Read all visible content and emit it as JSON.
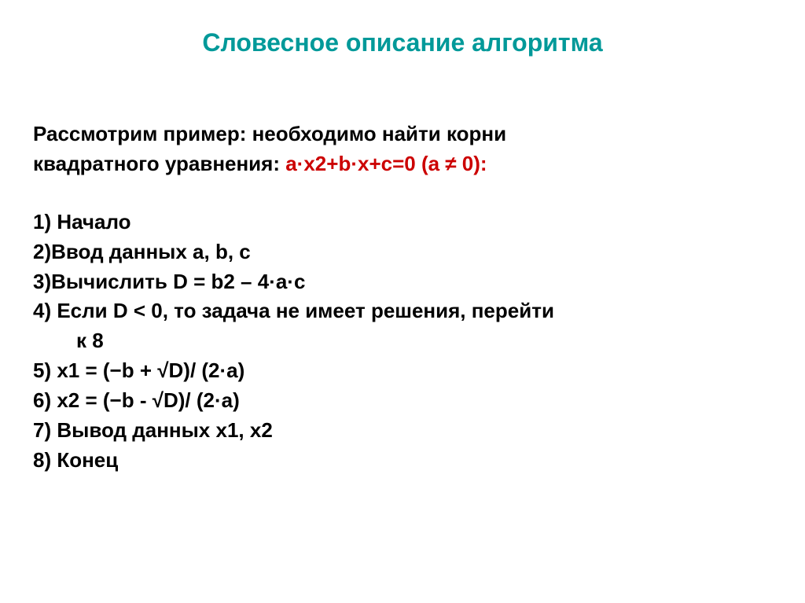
{
  "title": "Словесное описание алгоритма",
  "intro1": "Рассмотрим пример: необходимо найти корни",
  "intro2a": "квадратного уравнения: ",
  "intro2b_red": "a·x2+b·x+c=0 (a ≠ 0):",
  "steps": {
    "s1": "1) Начало",
    "s2": "2)Ввод данных a, b, c",
    "s3": "3)Вычислить D = b2 – 4·a·c",
    "s4a": "4) Если D < 0,  то задача не имеет решения, перейти",
    "s4b": "к 8",
    "s5": "5)    x1 = (−b + √D)/ (2·a)",
    "s6": "6)    x2 = (−b - √D)/ (2·a)",
    "s7": "7)    Вывод данных  x1, x2",
    "s8": "8) Конец"
  },
  "colors": {
    "title": "#009999",
    "emphasis": "#cc0000",
    "text": "#000000",
    "background": "#ffffff"
  },
  "typography": {
    "title_fontsize": 32,
    "body_fontsize": 26,
    "font_family": "Arial",
    "font_weight": "bold"
  }
}
